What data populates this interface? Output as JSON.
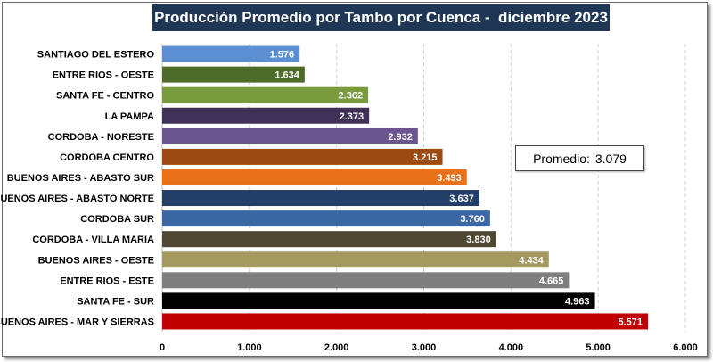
{
  "chart_data": {
    "type": "bar",
    "orientation": "horizontal",
    "title": "Producción Promedio por Tambo por Cuenca -  diciembre 2023",
    "categories": [
      "SANTIAGO DEL ESTERO",
      "ENTRE RIOS - OESTE",
      "SANTA FE - CENTRO",
      "LA PAMPA",
      "CORDOBA - NORESTE",
      "CORDOBA CENTRO",
      "BUENOS AIRES - ABASTO SUR",
      "BUENOS AIRES - ABASTO NORTE",
      "CORDOBA SUR",
      "CORDOBA - VILLA MARIA",
      "BUENOS AIRES - OESTE",
      "ENTRE RIOS - ESTE",
      "SANTA FE - SUR",
      "BUENOS AIRES - MAR Y SIERRAS"
    ],
    "values": [
      1576,
      1634,
      2362,
      2373,
      2932,
      3215,
      3493,
      3637,
      3760,
      3830,
      4434,
      4665,
      4963,
      5571
    ],
    "value_labels": [
      "1.576",
      "1.634",
      "2.362",
      "2.373",
      "2.932",
      "3.215",
      "3.493",
      "3.637",
      "3.760",
      "3.830",
      "4.434",
      "4.665",
      "4.963",
      "5.571"
    ],
    "colors": [
      "#5b8fd2",
      "#4e6b2a",
      "#7a9a3e",
      "#3f3158",
      "#6b5590",
      "#9c4a10",
      "#e8711a",
      "#233f68",
      "#3c67a5",
      "#4f4732",
      "#a49a5f",
      "#7f7f7f",
      "#000000",
      "#c00000"
    ],
    "xlim": [
      0,
      6000
    ],
    "xticks": [
      0,
      1000,
      2000,
      3000,
      4000,
      5000,
      6000
    ],
    "xtick_labels": [
      "0",
      "1.000",
      "2.000",
      "3.000",
      "4.000",
      "5.000",
      "6.000"
    ],
    "grid": true,
    "xlabel": "",
    "ylabel": "",
    "annotation": {
      "label": "Promedio:",
      "value": "3.079"
    }
  }
}
